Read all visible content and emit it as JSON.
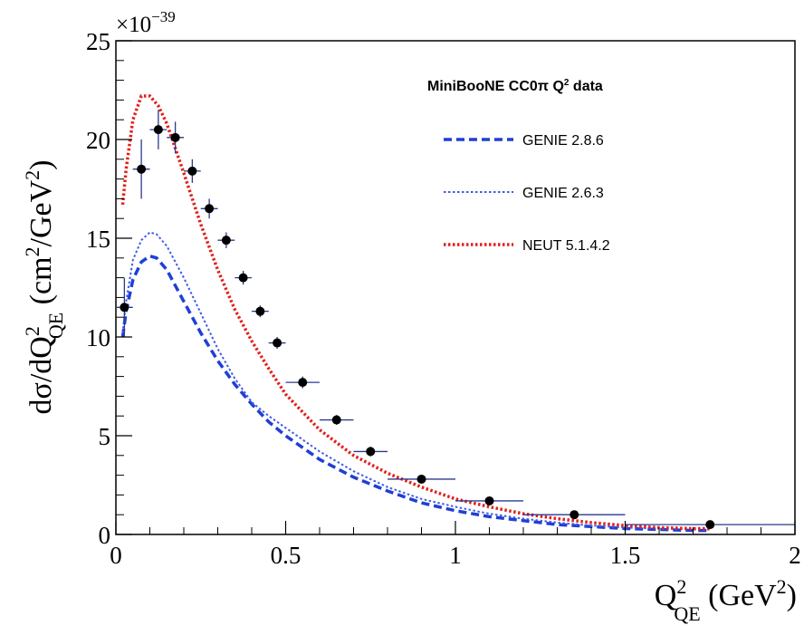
{
  "chart_data": {
    "type": "scatter",
    "legend": {
      "title": "MiniBooNE CC0π Q² data",
      "placement": "top-right",
      "entries": [
        {
          "label": "GENIE 2.8.6",
          "series": "genie286"
        },
        {
          "label": "GENIE 2.6.3",
          "series": "genie263"
        },
        {
          "label": "NEUT 5.1.4.2",
          "series": "neut"
        }
      ]
    },
    "xaxis": {
      "label": "Q²_QE (GeV²)",
      "range": [
        0,
        2
      ],
      "ticks": [
        0,
        0.5,
        1,
        1.5,
        2
      ],
      "tick_labels": [
        "0",
        "0.5",
        "1",
        "1.5",
        "2"
      ]
    },
    "yaxis": {
      "label": "dσ/dQ²_QE (cm²/GeV²)",
      "multiplier": "×10−39",
      "range": [
        0,
        25
      ],
      "ticks": [
        0,
        5,
        10,
        15,
        20,
        25
      ],
      "tick_labels": [
        "0",
        "5",
        "10",
        "15",
        "20",
        "25"
      ]
    },
    "grid": false,
    "data_points": [
      {
        "x": 0.025,
        "y": 11.5,
        "xerr": 0.025,
        "yerr": 1.5
      },
      {
        "x": 0.075,
        "y": 18.5,
        "xerr": 0.025,
        "yerr": 1.5
      },
      {
        "x": 0.125,
        "y": 20.5,
        "xerr": 0.025,
        "yerr": 1.0
      },
      {
        "x": 0.175,
        "y": 20.1,
        "xerr": 0.025,
        "yerr": 0.8
      },
      {
        "x": 0.225,
        "y": 18.4,
        "xerr": 0.025,
        "yerr": 0.6
      },
      {
        "x": 0.275,
        "y": 16.5,
        "xerr": 0.025,
        "yerr": 0.5
      },
      {
        "x": 0.325,
        "y": 14.9,
        "xerr": 0.025,
        "yerr": 0.4
      },
      {
        "x": 0.375,
        "y": 13.0,
        "xerr": 0.025,
        "yerr": 0.35
      },
      {
        "x": 0.425,
        "y": 11.3,
        "xerr": 0.025,
        "yerr": 0.3
      },
      {
        "x": 0.475,
        "y": 9.7,
        "xerr": 0.025,
        "yerr": 0.3
      },
      {
        "x": 0.55,
        "y": 7.7,
        "xerr": 0.05,
        "yerr": 0.3
      },
      {
        "x": 0.65,
        "y": 5.8,
        "xerr": 0.05,
        "yerr": 0.25
      },
      {
        "x": 0.75,
        "y": 4.2,
        "xerr": 0.05,
        "yerr": 0.25
      },
      {
        "x": 0.9,
        "y": 2.8,
        "xerr": 0.1,
        "yerr": 0.2
      },
      {
        "x": 1.1,
        "y": 1.7,
        "xerr": 0.1,
        "yerr": 0.15
      },
      {
        "x": 1.35,
        "y": 1.0,
        "xerr": 0.15,
        "yerr": 0.1
      },
      {
        "x": 1.75,
        "y": 0.5,
        "xerr": 0.25,
        "yerr": 0.1
      }
    ],
    "series": [
      {
        "name": "GENIE 2.8.6",
        "id": "genie286",
        "color": "#1f3fd6",
        "dash": "dashed",
        "x": [
          0.02,
          0.03,
          0.05,
          0.075,
          0.1,
          0.12,
          0.15,
          0.2,
          0.25,
          0.3,
          0.35,
          0.4,
          0.45,
          0.5,
          0.6,
          0.7,
          0.8,
          0.9,
          1.0,
          1.1,
          1.2,
          1.3,
          1.4,
          1.5,
          1.6,
          1.7,
          1.75
        ],
        "y": [
          10.0,
          11.3,
          12.9,
          13.8,
          14.1,
          14.0,
          13.4,
          11.8,
          10.2,
          8.8,
          7.6,
          6.6,
          5.7,
          5.0,
          3.8,
          2.9,
          2.2,
          1.6,
          1.2,
          0.9,
          0.7,
          0.5,
          0.4,
          0.3,
          0.25,
          0.2,
          0.2
        ]
      },
      {
        "name": "GENIE 2.6.3",
        "id": "genie263",
        "color": "#3f5be8",
        "dash": "dotted",
        "x": [
          0.02,
          0.03,
          0.05,
          0.075,
          0.1,
          0.12,
          0.15,
          0.2,
          0.25,
          0.3,
          0.35,
          0.4,
          0.45,
          0.5,
          0.6,
          0.7,
          0.8,
          0.9,
          1.0,
          1.1,
          1.2,
          1.3,
          1.4,
          1.5,
          1.6,
          1.7,
          1.75
        ],
        "y": [
          10.2,
          11.8,
          13.9,
          14.9,
          15.3,
          15.2,
          14.6,
          13.0,
          11.2,
          9.4,
          7.9,
          6.7,
          6.0,
          5.4,
          4.2,
          3.2,
          2.4,
          1.8,
          1.4,
          1.05,
          0.8,
          0.6,
          0.45,
          0.35,
          0.3,
          0.25,
          0.25
        ]
      },
      {
        "name": "NEUT 5.1.4.2",
        "id": "neut",
        "color": "#e0201b",
        "dash": "dotted",
        "x": [
          0.02,
          0.03,
          0.05,
          0.075,
          0.1,
          0.125,
          0.15,
          0.2,
          0.25,
          0.3,
          0.35,
          0.4,
          0.45,
          0.5,
          0.6,
          0.7,
          0.8,
          0.9,
          1.0,
          1.1,
          1.2,
          1.3,
          1.4,
          1.5,
          1.6,
          1.7,
          1.75
        ],
        "y": [
          16.7,
          18.5,
          21.0,
          22.2,
          22.2,
          21.7,
          20.8,
          18.3,
          15.7,
          13.4,
          11.4,
          9.8,
          8.4,
          7.1,
          5.3,
          4.0,
          3.1,
          2.4,
          1.8,
          1.4,
          1.05,
          0.8,
          0.6,
          0.45,
          0.35,
          0.3,
          0.3
        ]
      }
    ]
  }
}
